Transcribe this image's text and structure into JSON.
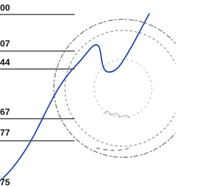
{
  "rows": [
    "00",
    "07",
    "44",
    "67",
    "77",
    "75"
  ]
}
